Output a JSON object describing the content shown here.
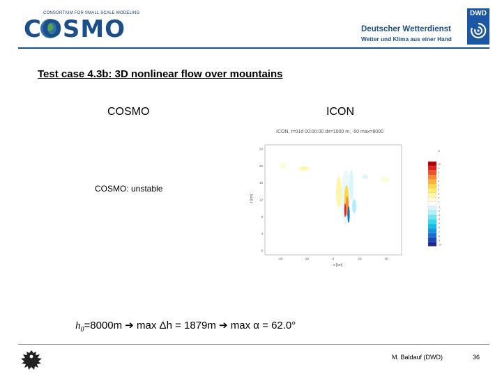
{
  "header": {
    "cosmo_tagline": "CONSORTIUM FOR SMALL SCALE MODELING",
    "cosmo_wordmark": "COSMO",
    "dwd_abbr": "DWD",
    "dwd_name": "Deutscher Wetterdienst",
    "dwd_subtitle": "Wetter und Klima aus einer Hand"
  },
  "slide": {
    "title": "Test case 4.3b: 3D nonlinear flow over mountains",
    "col_cosmo": "COSMO",
    "col_icon": "ICON",
    "cosmo_note": "COSMO: unstable",
    "plot_title": "ICON, t=01d 00:00:00 dx=1000 m, -50  max=8000",
    "formula": {
      "h0_symbol": "h",
      "h0_sub": "0",
      "part1": "=8000m",
      "arrow1": "➔",
      "part2": "max Δh = 1879m",
      "arrow2": "➔",
      "part3": "max α = 62.0°"
    }
  },
  "plot": {
    "y_ticks": [
      "24",
      "20",
      "16",
      "12",
      "8",
      "4",
      "0"
    ],
    "x_ticks": [
      "-40",
      "-20",
      "0",
      "20",
      "40"
    ],
    "y_label": "z [km]",
    "x_label": "x [km]",
    "colorbar_ticks": [
      "10",
      "9",
      "8",
      "7",
      "6",
      "5",
      "4",
      "3",
      "2",
      "1",
      "-1",
      "-2",
      "-3",
      "-4",
      "-5",
      "-6",
      "-7",
      "-8",
      "-9",
      "-10"
    ],
    "colorbar_unit": "w",
    "colors": {
      "warm": [
        "#b20000",
        "#e0201a",
        "#f0502a",
        "#f78a30",
        "#fbb33a",
        "#fdd64a",
        "#fff06a",
        "#fff6a8",
        "#fffbd8",
        "#ffffff"
      ],
      "cold": [
        "#ffffff",
        "#d8f7fb",
        "#b0f0f8",
        "#70e6f4",
        "#30d8f0",
        "#10bfe8",
        "#1496e0",
        "#1670d2",
        "#1a48b8",
        "#1c2890"
      ]
    }
  },
  "footer": {
    "author": "M. Baldauf (DWD)",
    "page": "36"
  }
}
